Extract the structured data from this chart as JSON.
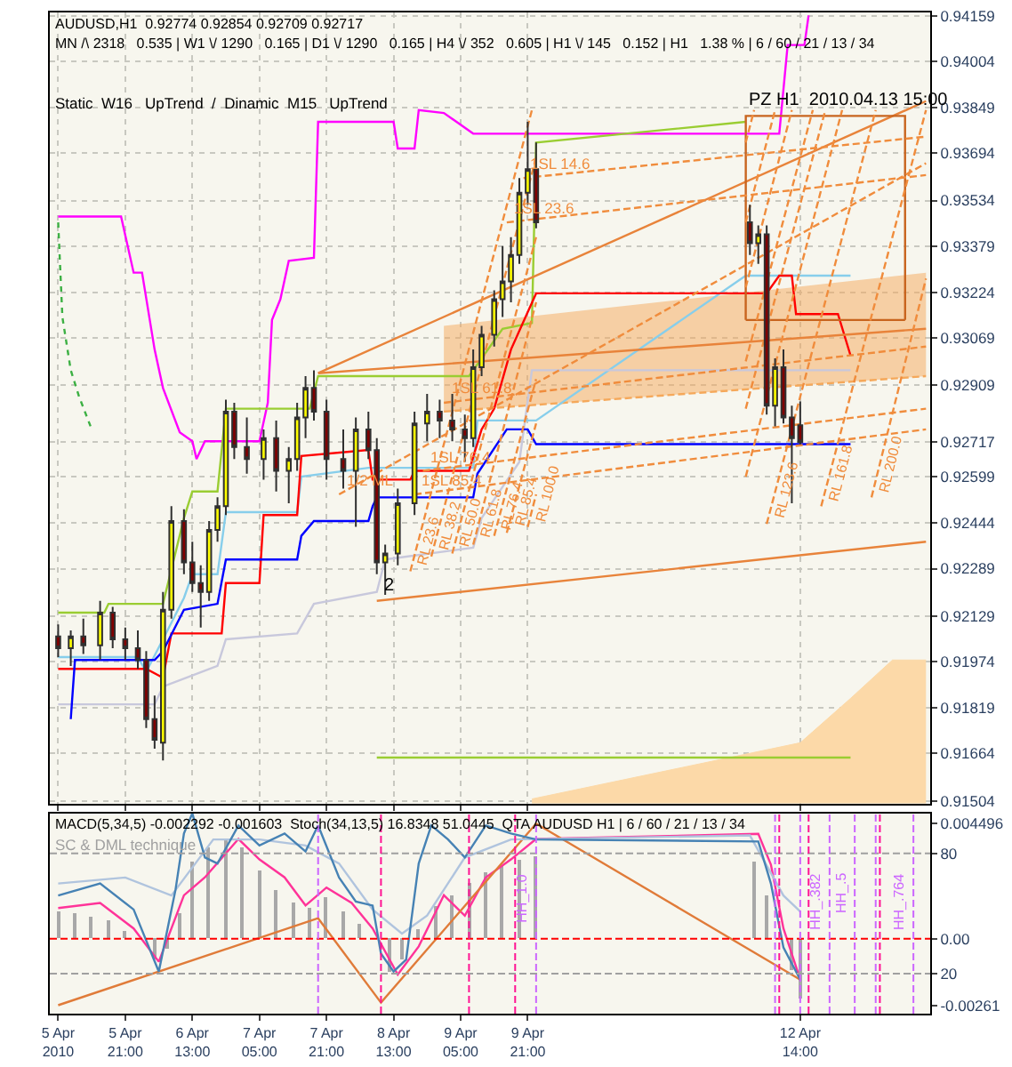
{
  "chart_data": [
    {
      "type": "candlestick",
      "title": "AUDUSD,H1  0.92774 0.92854 0.92709 0.92717",
      "subtitle": "MN /\\ 2318   0.535 | W1 \\/ 1290   0.165 | D1 \\/ 1290   0.165 | H4 \\/ 352   0.605 | H1 \\/ 145   0.152 | H1   1.38 % | 6 / 60 / 21 / 13 / 34",
      "annotations": [
        "Static  W16   UpTrend  /  Dinamic  M15   UpTrend",
        {
          "text": "PZ H1  2010.04.13 15:00",
          "x": "2010-04-12T01:00",
          "y": 0.9382
        },
        {
          "text": "2",
          "x": "2010-04-08T10:00",
          "y": 0.9218
        }
      ],
      "x": [
        "2010-04-05T05:00",
        "2010-04-05T08:00",
        "2010-04-05T11:00",
        "2010-04-05T15:00",
        "2010-04-05T18:00",
        "2010-04-05T21:00",
        "2010-04-06T00:00",
        "2010-04-06T02:00",
        "2010-04-06T04:00",
        "2010-04-06T06:00",
        "2010-04-06T08:00",
        "2010-04-06T11:00",
        "2010-04-06T13:00",
        "2010-04-06T15:00",
        "2010-04-06T17:00",
        "2010-04-06T19:00",
        "2010-04-06T21:00",
        "2010-04-06T23:00",
        "2010-04-07T02:00",
        "2010-04-07T06:00",
        "2010-04-07T09:00",
        "2010-04-07T12:00",
        "2010-04-07T14:00",
        "2010-04-07T16:00",
        "2010-04-07T18:00",
        "2010-04-07T21:00",
        "2010-04-08T01:00",
        "2010-04-08T04:00",
        "2010-04-08T07:00",
        "2010-04-08T09:00",
        "2010-04-08T11:00",
        "2010-04-08T14:00",
        "2010-04-08T18:00",
        "2010-04-08T21:00",
        "2010-04-09T00:00",
        "2010-04-09T03:00",
        "2010-04-09T06:00",
        "2010-04-09T08:00",
        "2010-04-09T10:00",
        "2010-04-09T13:00",
        "2010-04-09T15:00",
        "2010-04-09T17:00",
        "2010-04-09T19:00",
        "2010-04-09T21:00",
        "2010-04-09T23:00",
        "2010-04-12T02:00",
        "2010-04-12T04:00",
        "2010-04-12T06:00",
        "2010-04-12T08:00",
        "2010-04-12T10:00",
        "2010-04-12T12:00",
        "2010-04-12T14:00"
      ],
      "ohlc": [
        [
          0.9206,
          0.921,
          0.9199,
          0.9202
        ],
        [
          0.9202,
          0.9208,
          0.9196,
          0.9206
        ],
        [
          0.9206,
          0.9212,
          0.92,
          0.9203
        ],
        [
          0.9203,
          0.9218,
          0.9198,
          0.9214
        ],
        [
          0.9214,
          0.9216,
          0.9202,
          0.9205
        ],
        [
          0.9205,
          0.9209,
          0.9198,
          0.9202
        ],
        [
          0.9202,
          0.9208,
          0.9195,
          0.9198
        ],
        [
          0.9198,
          0.9201,
          0.9175,
          0.9178
        ],
        [
          0.9178,
          0.9186,
          0.9168,
          0.9171
        ],
        [
          0.917,
          0.9221,
          0.9164,
          0.9215
        ],
        [
          0.9215,
          0.925,
          0.9212,
          0.9245
        ],
        [
          0.9245,
          0.9249,
          0.9227,
          0.9231
        ],
        [
          0.9231,
          0.9238,
          0.9221,
          0.9224
        ],
        [
          0.9224,
          0.923,
          0.9209,
          0.9221
        ],
        [
          0.9221,
          0.9245,
          0.9218,
          0.9242
        ],
        [
          0.9242,
          0.9253,
          0.9238,
          0.925
        ],
        [
          0.925,
          0.9286,
          0.9247,
          0.9282
        ],
        [
          0.9282,
          0.9285,
          0.9266,
          0.927
        ],
        [
          0.927,
          0.928,
          0.9261,
          0.9266
        ],
        [
          0.9266,
          0.9276,
          0.9259,
          0.9273
        ],
        [
          0.9273,
          0.9279,
          0.9255,
          0.9262
        ],
        [
          0.9262,
          0.927,
          0.9251,
          0.9266
        ],
        [
          0.9266,
          0.9285,
          0.9262,
          0.928
        ],
        [
          0.928,
          0.9294,
          0.9273,
          0.929
        ],
        [
          0.929,
          0.9296,
          0.9279,
          0.9282
        ],
        [
          0.9282,
          0.9286,
          0.9259,
          0.9266
        ],
        [
          0.9266,
          0.9276,
          0.9256,
          0.9262
        ],
        [
          0.9262,
          0.928,
          0.9243,
          0.9276
        ],
        [
          0.9276,
          0.9282,
          0.9266,
          0.9269
        ],
        [
          0.9269,
          0.9273,
          0.9227,
          0.9231
        ],
        [
          0.9231,
          0.9237,
          0.922,
          0.9234
        ],
        [
          0.9234,
          0.9256,
          0.923,
          0.9251
        ],
        [
          0.9251,
          0.9282,
          0.9247,
          0.9278
        ],
        [
          0.9278,
          0.9288,
          0.9272,
          0.9282
        ],
        [
          0.9282,
          0.9286,
          0.9273,
          0.9279
        ],
        [
          0.9279,
          0.9288,
          0.9272,
          0.9276
        ],
        [
          0.9276,
          0.9281,
          0.9265,
          0.9273
        ],
        [
          0.9273,
          0.9303,
          0.927,
          0.9297
        ],
        [
          0.9297,
          0.9311,
          0.9294,
          0.9308
        ],
        [
          0.9308,
          0.9323,
          0.9304,
          0.932
        ],
        [
          0.932,
          0.9338,
          0.9314,
          0.9326
        ],
        [
          0.9326,
          0.9341,
          0.9319,
          0.9335
        ],
        [
          0.9335,
          0.9361,
          0.9332,
          0.9356
        ],
        [
          0.9356,
          0.938,
          0.9352,
          0.9364
        ],
        [
          0.9364,
          0.9373,
          0.9344,
          0.9346
        ],
        [
          0.9346,
          0.9352,
          0.9335,
          0.9339
        ],
        [
          0.9339,
          0.9345,
          0.9332,
          0.9342
        ],
        [
          0.9342,
          0.9345,
          0.9281,
          0.9284
        ],
        [
          0.9284,
          0.93,
          0.9277,
          0.9297
        ],
        [
          0.9297,
          0.9303,
          0.9278,
          0.928
        ],
        [
          0.928,
          0.9284,
          0.9251,
          0.9273
        ],
        [
          0.92774,
          0.92854,
          0.92709,
          0.92717
        ]
      ],
      "colors": [
        "#800000",
        "#ffff00",
        "#800000",
        "#ffff00",
        "#800000",
        "#800000",
        "#800000",
        "#800000",
        "#800000",
        "#ffff00",
        "#ffff00",
        "#800000",
        "#800000",
        "#800000",
        "#ffff00",
        "#ffff00",
        "#ffff00",
        "#800000",
        "#800000",
        "#ffff00",
        "#800000",
        "#ffff00",
        "#ffff00",
        "#ffff00",
        "#800000",
        "#800000",
        "#800000",
        "#ffff00",
        "#800000",
        "#800000",
        "#ffff00",
        "#ffff00",
        "#ffff00",
        "#ffff00",
        "#800000",
        "#800000",
        "#800000",
        "#ffff00",
        "#ffff00",
        "#ffff00",
        "#ffff00",
        "#ffff00",
        "#ffff00",
        "#ffff00",
        "#800000",
        "#800000",
        "#ffff00",
        "#800000",
        "#ffff00",
        "#800000",
        "#800000",
        "#800000"
      ],
      "series": [
        {
          "type": "area",
          "color": "#fcd9a8",
          "x": [
            "2010-04-09T22:00",
            "2010-04-12T14:00",
            "2010-04-13T02:00",
            "2010-04-13T12:00",
            "2010-04-13T20:00"
          ],
          "values": [
            0.9151,
            0.917,
            0.9185,
            0.9198,
            0.9198
          ]
        },
        {
          "type": "line",
          "color": "#f5a85a",
          "line_style": "dashed",
          "x": [
            "2010-04-09T01:00",
            "2010-04-13T20:00"
          ],
          "values": [
            0.9282,
            0.9294
          ],
          "lower": [
            0.9282,
            0.9294
          ],
          "upper": [
            0.9311,
            0.9329
          ]
        },
        {
          "type": "line",
          "color": "#ff00ff",
          "x": [
            "2010-04-05T05:00",
            "2010-04-05T20:00",
            "2010-04-05T23:00",
            "2010-04-06T01:00",
            "2010-04-06T04:00",
            "2010-04-06T06:00",
            "2010-04-06T10:00",
            "2010-04-06T13:00",
            "2010-04-06T14:00",
            "2010-04-06T16:00",
            "2010-04-07T05:00",
            "2010-04-07T07:00",
            "2010-04-07T08:00",
            "2010-04-07T10:00",
            "2010-04-07T12:00",
            "2010-04-07T18:00",
            "2010-04-07T19:00",
            "2010-04-08T13:00",
            "2010-04-08T14:00",
            "2010-04-08T18:00",
            "2010-04-08T19:00",
            "2010-04-09T01:00",
            "2010-04-09T08:00",
            "2010-04-12T09:00",
            "2010-04-12T11:00",
            "2010-04-12T15:00",
            "2010-04-12T16:00"
          ],
          "values": [
            0.9348,
            0.9348,
            0.9329,
            0.9329,
            0.9303,
            0.929,
            0.9275,
            0.9272,
            0.9266,
            0.9272,
            0.9272,
            0.9285,
            0.9313,
            0.932,
            0.9333,
            0.9334,
            0.938,
            0.938,
            0.9371,
            0.9371,
            0.9384,
            0.9383,
            0.9376,
            0.9376,
            0.9406,
            0.9406,
            0.9416
          ]
        },
        {
          "type": "line",
          "color": "#3cb043",
          "line_style": "dotted",
          "x": [
            "2010-04-05T05:00",
            "2010-04-05T06:00",
            "2010-04-05T08:00",
            "2010-04-05T10:00",
            "2010-04-05T13:00"
          ],
          "values": [
            0.9346,
            0.9314,
            0.9296,
            0.9287,
            0.9276
          ]
        },
        {
          "type": "line",
          "color": "#9acd32",
          "x": [
            "2010-04-05T05:00",
            "2010-04-05T16:00",
            "2010-04-05T17:00",
            "2010-04-06T06:00",
            "2010-04-06T11:00",
            "2010-04-06T13:00",
            "2010-04-06T19:00",
            "2010-04-06T21:00",
            "2010-04-07T17:00",
            "2010-04-07T19:00",
            "2010-04-09T07:00",
            "2010-04-09T15:00",
            "2010-04-09T22:00",
            "2010-04-09T23:00",
            "2010-04-12T01:00"
          ],
          "values": [
            0.9214,
            0.9214,
            0.9217,
            0.9217,
            0.9246,
            0.9255,
            0.9255,
            0.9283,
            0.9283,
            0.9294,
            0.9294,
            0.931,
            0.9312,
            0.9373,
            0.938
          ]
        },
        {
          "type": "line",
          "color": "#9acd32",
          "x": [
            "2010-04-08T09:00",
            "2010-04-13T02:00"
          ],
          "values": [
            0.9165,
            0.9165
          ]
        },
        {
          "type": "line",
          "color": "#87ceeb",
          "x": [
            "2010-04-05T05:00",
            "2010-04-06T00:00",
            "2010-04-06T02:00",
            "2010-04-06T06:00",
            "2010-04-06T11:00",
            "2010-04-06T13:00",
            "2010-04-06T19:00",
            "2010-04-06T21:00",
            "2010-04-07T14:00",
            "2010-04-07T15:00",
            "2010-04-08T07:00",
            "2010-04-09T08:00",
            "2010-04-09T09:00",
            "2010-04-09T23:00",
            "2010-04-12T01:00",
            "2010-04-13T02:00"
          ],
          "values": [
            0.9199,
            0.9199,
            0.9194,
            0.9205,
            0.9219,
            0.9227,
            0.9227,
            0.9248,
            0.9248,
            0.926,
            0.9263,
            0.9263,
            0.9279,
            0.9279,
            0.9328,
            0.9328
          ]
        },
        {
          "type": "line",
          "color": "#c8c8dc",
          "x": [
            "2010-04-05T05:00",
            "2010-04-06T04:00",
            "2010-04-06T06:00",
            "2010-04-06T19:00",
            "2010-04-06T21:00",
            "2010-04-07T14:00",
            "2010-04-07T18:00",
            "2010-04-08T09:00",
            "2010-04-08T11:00",
            "2010-04-09T08:00",
            "2010-04-09T10:00",
            "2010-04-09T19:00",
            "2010-04-09T22:00",
            "2010-04-13T02:00"
          ],
          "values": [
            0.9183,
            0.9183,
            0.9189,
            0.9196,
            0.9205,
            0.9207,
            0.9217,
            0.9221,
            0.9232,
            0.9236,
            0.9246,
            0.9265,
            0.9296,
            0.9296
          ]
        },
        {
          "type": "line",
          "color": "#ff0000",
          "x": [
            "2010-04-05T05:00",
            "2010-04-06T00:00",
            "2010-04-06T02:00",
            "2010-04-06T06:00",
            "2010-04-06T08:00",
            "2010-04-06T20:00",
            "2010-04-06T21:00",
            "2010-04-07T05:00",
            "2010-04-07T06:00",
            "2010-04-07T14:00",
            "2010-04-07T15:00",
            "2010-04-08T07:00",
            "2010-04-08T08:00",
            "2010-04-08T17:00",
            "2010-04-08T18:00",
            "2010-04-09T07:00",
            "2010-04-09T10:00",
            "2010-04-09T13:00",
            "2010-04-09T17:00",
            "2010-04-09T23:00",
            "2010-04-12T06:00",
            "2010-04-12T09:00",
            "2010-04-12T12:00",
            "2010-04-12T13:00",
            "2010-04-12T23:00",
            "2010-04-13T02:00"
          ],
          "values": [
            0.9195,
            0.9195,
            0.9195,
            0.9192,
            0.9207,
            0.9207,
            0.9224,
            0.9224,
            0.9247,
            0.9247,
            0.9267,
            0.9269,
            0.9259,
            0.9259,
            0.9262,
            0.9262,
            0.9276,
            0.9283,
            0.9303,
            0.9322,
            0.9322,
            0.9328,
            0.9328,
            0.9315,
            0.9315,
            0.9301
          ]
        },
        {
          "type": "line",
          "color": "#0000ff",
          "x": [
            "2010-04-05T08:00",
            "2010-04-05T09:00",
            "2010-04-06T04:00",
            "2010-04-06T06:00",
            "2010-04-06T11:00",
            "2010-04-06T19:00",
            "2010-04-06T21:00",
            "2010-04-07T14:00",
            "2010-04-07T15:00",
            "2010-04-07T18:00",
            "2010-04-08T07:00",
            "2010-04-08T08:00",
            "2010-04-08T09:00",
            "2010-04-09T08:00",
            "2010-04-09T09:00",
            "2010-04-09T16:00",
            "2010-04-09T21:00",
            "2010-04-09T23:00",
            "2010-04-13T02:00"
          ],
          "values": [
            0.9178,
            0.9198,
            0.9198,
            0.9201,
            0.9215,
            0.9217,
            0.9232,
            0.9232,
            0.924,
            0.9245,
            0.9245,
            0.925,
            0.9253,
            0.9253,
            0.9261,
            0.9276,
            0.9276,
            0.9271,
            0.9271
          ]
        },
        {
          "type": "line",
          "color": "#e8833a",
          "x": [
            "2010-04-08T09:00",
            "2010-04-13T20:00"
          ],
          "values": [
            0.9218,
            0.9238
          ]
        },
        {
          "type": "line",
          "color": "#e8833a",
          "x": [
            "2010-04-07T19:00",
            "2010-04-13T20:00"
          ],
          "values": [
            0.9295,
            0.931
          ]
        },
        {
          "type": "line",
          "color": "#e8833a",
          "x": [
            "2010-04-07T19:00",
            "2010-04-13T20:00"
          ],
          "values": [
            0.9295,
            0.9387
          ]
        },
        {
          "type": "line",
          "color": "#c8641e",
          "x": [
            "2010-04-12T01:00",
            "2010-04-12T01:01",
            "2010-04-13T15:00",
            "2010-04-13T15:01"
          ],
          "values": [
            0.9313,
            0.9382,
            0.9382,
            0.9313
          ]
        },
        {
          "type": "line",
          "color": "#c8641e",
          "x": [
            "2010-04-12T01:00",
            "2010-04-13T15:01"
          ],
          "values": [
            0.9313,
            0.9313
          ]
        },
        {
          "type": "line",
          "name": "1/2 ML",
          "color": "#f08c3c",
          "line_style": "dashed",
          "x": [
            "2010-04-08T00:00",
            "2010-04-13T20:00"
          ],
          "values": [
            0.9254,
            0.9366
          ]
        },
        {
          "type": "line",
          "name": "1SL 85.4",
          "color": "#f08c3c",
          "line_style": "dashed",
          "x": [
            "2010-04-08T18:00",
            "2010-04-13T20:00"
          ],
          "values": [
            0.9254,
            0.9276
          ]
        },
        {
          "type": "line",
          "name": "1SL 76.4",
          "color": "#f08c3c",
          "line_style": "dashed",
          "x": [
            "2010-04-08T20:00",
            "2010-04-13T20:00"
          ],
          "values": [
            0.9262,
            0.9283
          ]
        },
        {
          "type": "line",
          "name": "1SL 61.8",
          "color": "#f08c3c",
          "line_style": "dashed",
          "x": [
            "2010-04-09T01:00",
            "2010-04-13T20:00"
          ],
          "values": [
            0.9285,
            0.9304
          ]
        },
        {
          "type": "line",
          "name": "1SL 23.6",
          "color": "#f08c3c",
          "line_style": "dashed",
          "x": [
            "2010-04-09T16:00",
            "2010-04-13T20:00"
          ],
          "values": [
            0.9346,
            0.9362
          ]
        },
        {
          "type": "line",
          "name": "1SL 14.6",
          "color": "#f08c3c",
          "line_style": "dashed",
          "x": [
            "2010-04-09T20:00",
            "2010-04-13T20:00"
          ],
          "values": [
            0.9361,
            0.9375
          ]
        },
        {
          "type": "line",
          "name": "RL 23.6",
          "color": "#f08c3c",
          "line_style": "dashed",
          "x": [
            "2010-04-08T17:00",
            "2010-04-09T22:00"
          ],
          "values": [
            0.9228,
            0.9384
          ]
        },
        {
          "type": "line",
          "name": "RL 38.2",
          "color": "#f08c3c",
          "line_style": "dashed",
          "x": [
            "2010-04-08T22:00",
            "2010-04-09T23:00",
            "2010-04-10T12:00",
            "2010-04-12T01:00",
            "2010-04-12T03:00"
          ],
          "values": [
            0.9233,
            0.9368,
            null,
            0.9373,
            0.9384
          ]
        },
        {
          "type": "line",
          "name": "RL 50.0",
          "color": "#f08c3c",
          "line_style": "dashed",
          "x": [
            "2010-04-09T03:00",
            "2010-04-09T23:00",
            "2010-04-10T12:00",
            "2010-04-12T01:00",
            "2010-04-12T08:00"
          ],
          "values": [
            0.9234,
            0.9341,
            null,
            0.9346,
            0.9384
          ]
        },
        {
          "type": "line",
          "name": "RL 61.8",
          "color": "#f08c3c",
          "line_style": "dashed",
          "x": [
            "2010-04-09T08:00",
            "2010-04-09T23:00",
            "2010-04-10T12:00",
            "2010-04-12T01:00",
            "2010-04-12T12:00"
          ],
          "values": [
            0.9237,
            0.9319,
            null,
            0.9324,
            0.9384
          ]
        },
        {
          "type": "line",
          "name": "RL 76.4",
          "color": "#f08c3c",
          "line_style": "dashed",
          "x": [
            "2010-04-09T13:00",
            "2010-04-09T23:00",
            "2010-04-10T12:00",
            "2010-04-12T01:00",
            "2010-04-12T17:00"
          ],
          "values": [
            0.924,
            0.9293,
            null,
            0.9299,
            0.9384
          ]
        },
        {
          "type": "line",
          "name": "RL 85.4",
          "color": "#f08c3c",
          "line_style": "dashed",
          "x": [
            "2010-04-09T16:00",
            "2010-04-09T23:00",
            "2010-04-10T12:00",
            "2010-04-12T01:00",
            "2010-04-12T20:00"
          ],
          "values": [
            0.9241,
            0.9278,
            null,
            0.9283,
            0.9384
          ]
        },
        {
          "type": "line",
          "name": "RL 100.0",
          "color": "#f08c3c",
          "line_style": "dashed",
          "x": [
            "2010-04-09T21:00",
            "2010-04-09T23:00",
            "2010-04-10T12:00",
            "2010-04-12T01:00",
            "2010-04-13T00:00"
          ],
          "values": [
            0.9243,
            0.9254,
            null,
            0.926,
            0.9384
          ]
        },
        {
          "type": "line",
          "name": "RL 123.6",
          "color": "#f08c3c",
          "line_style": "dashed",
          "x": [
            "2010-04-12T06:00",
            "2010-04-13T08:00"
          ],
          "values": [
            0.9244,
            0.9384
          ]
        },
        {
          "type": "line",
          "name": "RL 161.8",
          "color": "#f08c3c",
          "line_style": "dashed",
          "x": [
            "2010-04-12T19:00",
            "2010-04-13T20:00"
          ],
          "values": [
            0.925,
            0.9384
          ]
        },
        {
          "type": "line",
          "name": "RL 200.0",
          "color": "#f08c3c",
          "line_style": "dashed",
          "x": [
            "2010-04-13T07:00",
            "2010-04-13T20:00"
          ],
          "values": [
            0.9253,
            0.9327
          ]
        }
      ],
      "xlim": [
        "2010-04-05T03:00",
        "2010-04-13T21:00"
      ],
      "xticks": [
        {
          "value": "2010-04-05T05:00",
          "label": null
        },
        {
          "value": "2010-04-05T21:00",
          "label": null
        },
        {
          "value": "2010-04-06T13:00",
          "label": null
        },
        {
          "value": "2010-04-07T05:00",
          "label": null
        },
        {
          "value": "2010-04-07T21:00",
          "label": null
        },
        {
          "value": "2010-04-08T13:00",
          "label": null
        },
        {
          "value": "2010-04-09T05:00",
          "label": null
        },
        {
          "value": "2010-04-09T21:00",
          "label": null
        },
        {
          "value": "2010-04-12T14:00",
          "label": null
        }
      ],
      "ylim": [
        0.91495,
        0.9417
      ],
      "yticks": [
        0.94159,
        0.94004,
        0.93849,
        0.93694,
        0.93534,
        0.93379,
        0.93224,
        0.93069,
        0.92909,
        0.92717,
        0.92599,
        0.92444,
        0.92289,
        0.92129,
        0.91974,
        0.91819,
        0.91664,
        0.91504
      ],
      "grid": true,
      "tick_labels": "y"
    },
    {
      "type": "bar",
      "title": "MACD(5,34,5) -0.002292 -0.001603  Stoch(34,13,5) 16.8348 51.0445  QTA AUDUSD H1 | 6 / 60 / 21 / 13 / 34",
      "annotations": [
        "SC & DML technique"
      ],
      "color": "#a8a8a8",
      "x": [
        "2010-04-05T05:00",
        "2010-04-05T09:00",
        "2010-04-05T13:00",
        "2010-04-05T17:00",
        "2010-04-05T21:00",
        "2010-04-06T01:00",
        "2010-04-06T04:00",
        "2010-04-06T07:00",
        "2010-04-06T10:00",
        "2010-04-06T13:00",
        "2010-04-06T17:00",
        "2010-04-06T21:00",
        "2010-04-07T01:00",
        "2010-04-07T05:00",
        "2010-04-07T09:00",
        "2010-04-07T13:00",
        "2010-04-07T17:00",
        "2010-04-07T21:00",
        "2010-04-08T01:00",
        "2010-04-08T05:00",
        "2010-04-08T09:00",
        "2010-04-08T12:00",
        "2010-04-08T15:00",
        "2010-04-08T19:00",
        "2010-04-08T23:00",
        "2010-04-09T03:00",
        "2010-04-09T07:00",
        "2010-04-09T11:00",
        "2010-04-09T15:00",
        "2010-04-09T19:00",
        "2010-04-09T23:00",
        "2010-04-12T03:00",
        "2010-04-12T06:00",
        "2010-04-12T09:00",
        "2010-04-12T12:00",
        "2010-04-12T14:00"
      ],
      "values": [
        0.0011,
        0.001,
        0.0009,
        0.0007,
        0.0003,
        0.0,
        -0.0008,
        -0.0004,
        0.001,
        0.003,
        0.0036,
        0.0039,
        0.0036,
        0.0027,
        0.0019,
        0.0014,
        0.0012,
        0.0016,
        0.0011,
        0.0006,
        null,
        -0.0013,
        -0.0008,
        0.0004,
        0.0013,
        0.0017,
        0.0022,
        0.0026,
        0.0029,
        0.0031,
        0.0032,
        0.003,
        0.0017,
        null,
        -0.0012,
        -0.0023
      ],
      "series": [
        {
          "type": "line",
          "color": "#ff3399",
          "x": [
            "2010-04-05T05:00",
            "2010-04-05T15:00",
            "2010-04-05T23:00",
            "2010-04-06T05:00",
            "2010-04-06T11:00",
            "2010-04-06T16:00",
            "2010-04-07T00:00",
            "2010-04-07T05:00",
            "2010-04-07T11:00",
            "2010-04-07T16:00",
            "2010-04-07T21:00",
            "2010-04-08T03:00",
            "2010-04-08T08:00",
            "2010-04-08T14:00",
            "2010-04-08T19:00",
            "2010-04-09T01:00",
            "2010-04-09T06:00",
            "2010-04-09T11:00",
            "2010-04-09T17:00",
            "2010-04-09T23:00",
            "2010-04-12T04:00",
            "2010-04-12T07:00",
            "2010-04-12T10:00",
            "2010-04-12T14:00"
          ],
          "values": [
            0.0012,
            0.0014,
            0.0004,
            -0.0009,
            0.0017,
            0.0024,
            0.0039,
            0.0031,
            0.0024,
            0.0013,
            0.002,
            0.0014,
            0.0004,
            -0.0014,
            -0.0003,
            0.0017,
            0.0009,
            0.0024,
            0.0031,
            0.0039,
            0.0041,
            0.0029,
            0.0004,
            -0.0016
          ]
        },
        {
          "type": "line",
          "color": "#b0c4de",
          "axis": "y2",
          "x": [
            "2010-04-05T05:00",
            "2010-04-05T21:00",
            "2010-04-06T08:00",
            "2010-04-06T18:00",
            "2010-04-07T05:00",
            "2010-04-07T16:00",
            "2010-04-08T00:00",
            "2010-04-08T08:00",
            "2010-04-08T15:00",
            "2010-04-08T21:00",
            "2010-04-09T06:00",
            "2010-04-09T17:00",
            "2010-04-12T02:00",
            "2010-04-12T10:00",
            "2010-04-12T14:00"
          ],
          "values": [
            65,
            68,
            59,
            87,
            87,
            84,
            75,
            52,
            40,
            49,
            78,
            87,
            89,
            59,
            51
          ]
        },
        {
          "type": "line",
          "color": "#4682b4",
          "axis": "y2",
          "x": [
            "2010-04-05T05:00",
            "2010-04-05T15:00",
            "2010-04-05T23:00",
            "2010-04-06T05:00",
            "2010-04-06T09:00",
            "2010-04-06T11:00",
            "2010-04-06T13:00",
            "2010-04-06T16:00",
            "2010-04-06T19:00",
            "2010-04-07T00:00",
            "2010-04-07T05:00",
            "2010-04-07T11:00",
            "2010-04-07T16:00",
            "2010-04-07T19:00",
            "2010-04-08T00:00",
            "2010-04-08T04:00",
            "2010-04-08T08:00",
            "2010-04-08T10:00",
            "2010-04-08T13:00",
            "2010-04-08T16:00",
            "2010-04-08T19:00",
            "2010-04-08T22:00",
            "2010-04-09T02:00",
            "2010-04-09T06:00",
            "2010-04-09T11:00",
            "2010-04-09T17:00",
            "2010-04-09T23:00",
            "2010-04-12T04:00",
            "2010-04-12T07:00",
            "2010-04-12T10:00",
            "2010-04-12T14:00"
          ],
          "values": [
            59,
            65,
            52,
            21,
            62,
            90,
            100,
            78,
            75,
            94,
            84,
            90,
            81,
            94,
            68,
            56,
            54,
            30,
            21,
            27,
            75,
            94,
            87,
            78,
            94,
            90,
            87,
            86,
            65,
            33,
            17
          ]
        },
        {
          "type": "line",
          "color": "#e07b39",
          "x": [
            "2010-04-05T05:00",
            "2010-04-07T19:00",
            "2010-04-08T10:00",
            "2010-04-09T23:00",
            "2010-04-12T14:00"
          ],
          "values": [
            -0.0026,
            0.0008,
            -0.0025,
            0.0045,
            -0.0016
          ]
        }
      ],
      "xlim": [
        "2010-04-05T03:00",
        "2010-04-13T21:00"
      ],
      "xticks": [
        {
          "value": "2010-04-05T05:00",
          "label": "5 Apr 2010"
        },
        {
          "value": "2010-04-05T21:00",
          "label": "5 Apr 21:00"
        },
        {
          "value": "2010-04-06T13:00",
          "label": "6 Apr 13:00"
        },
        {
          "value": "2010-04-07T05:00",
          "label": "7 Apr 05:00"
        },
        {
          "value": "2010-04-07T21:00",
          "label": "7 Apr 21:00"
        },
        {
          "value": "2010-04-08T13:00",
          "label": "8 Apr 13:00"
        },
        {
          "value": "2010-04-09T05:00",
          "label": "9 Apr 05:00"
        },
        {
          "value": "2010-04-09T21:00",
          "label": "9 Apr 21:00"
        },
        {
          "value": "2010-04-12T14:00",
          "label": "12 Apr 14:00"
        }
      ],
      "ylim": [
        -0.00293,
        0.0049
      ],
      "yticks": [
        0.004496,
        {
          "value": 0,
          "label": "0.00"
        },
        -0.00261
      ],
      "y2lim": [
        0,
        100
      ],
      "y2ticks": [
        80,
        20
      ],
      "ref_lines": [
        {
          "axis": "y",
          "value": 0,
          "color": "#ff0000",
          "line_style": "dashed"
        },
        {
          "axis": "y2",
          "value": 80,
          "color": "#a0a0a0",
          "line_style": "dashed"
        },
        {
          "axis": "y2",
          "value": 20,
          "color": "#a0a0a0",
          "line_style": "dashed"
        },
        {
          "axis": "x",
          "value": "2010-04-07T19:00",
          "color": "#cc66ff",
          "line_style": "dashed"
        },
        {
          "axis": "x",
          "value": "2010-04-08T10:00",
          "color": "#ff1493",
          "line_style": "dashed"
        },
        {
          "axis": "x",
          "value": "2010-04-09T07:00",
          "color": "#ff1493",
          "line_style": "dashed"
        },
        {
          "axis": "x",
          "value": "2010-04-09T18:00",
          "color": "#ff1493",
          "line_style": "dashed"
        },
        {
          "axis": "x",
          "value": "2010-04-09T23:00",
          "color": "#cc66ff",
          "line_style": "dashed",
          "label": "HH_1.0"
        },
        {
          "axis": "x",
          "value": "2010-04-12T08:00",
          "color": "#cc66ff",
          "line_style": "dashed"
        },
        {
          "axis": "x",
          "value": "2010-04-12T09:00",
          "color": "#ff1493",
          "line_style": "dashed"
        },
        {
          "axis": "x",
          "value": "2010-04-12T14:00",
          "color": "#cc66ff",
          "line_style": "dashed"
        },
        {
          "axis": "x",
          "value": "2010-04-12T16:00",
          "color": "#ff1493",
          "line_style": "dashed"
        },
        {
          "axis": "x",
          "value": "2010-04-12T21:00",
          "color": "#cc66ff",
          "line_style": "dashed",
          "label": "HH_.382"
        },
        {
          "axis": "x",
          "value": "2010-04-13T03:00",
          "color": "#cc66ff",
          "line_style": "dashed",
          "label": "HH_.5"
        },
        {
          "axis": "x",
          "value": "2010-04-13T08:00",
          "color": "#cc66ff",
          "line_style": "dashed"
        },
        {
          "axis": "x",
          "value": "2010-04-13T09:00",
          "color": "#ff1493",
          "line_style": "dashed"
        },
        {
          "axis": "x",
          "value": "2010-04-13T17:00",
          "color": "#cc66ff",
          "line_style": "dashed",
          "label": "HH_.764"
        }
      ]
    }
  ]
}
